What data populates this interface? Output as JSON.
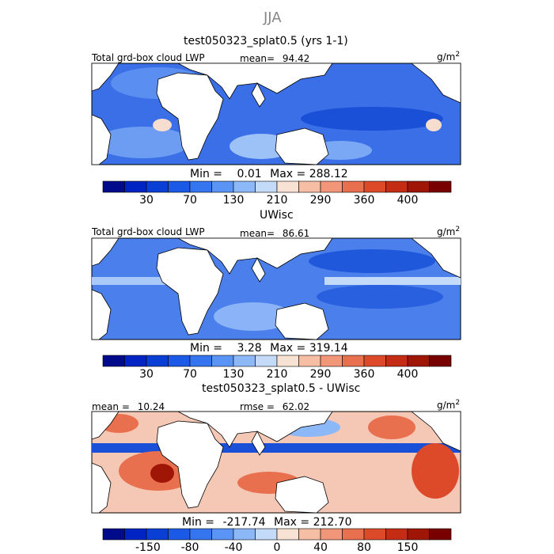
{
  "season_title": "JJA",
  "panels": [
    {
      "title": "test050323_splat0.5 (yrs 1-1)",
      "variable_label": "Total grd-box cloud LWP",
      "stat_label": "mean=",
      "stat_value": "94.42",
      "units": "g/m",
      "units_exp": "2",
      "min_label": "Min =",
      "min_value": "0.01",
      "max_label": "Max =",
      "max_value": "288.12"
    },
    {
      "title": "UWisc",
      "variable_label": "Total grd-box cloud LWP",
      "stat_label": "mean=",
      "stat_value": "86.61",
      "units": "g/m",
      "units_exp": "2",
      "min_label": "Min =",
      "min_value": "3.28",
      "max_label": "Max =",
      "max_value": "319.14"
    },
    {
      "title": "test050323_splat0.5 - UWisc",
      "mean_label": "mean =",
      "mean_value": "10.24",
      "rmse_label": "rmse =",
      "rmse_value": "62.02",
      "units": "g/m",
      "units_exp": "2",
      "min_label": "Min =",
      "min_value": "-217.74",
      "max_label": "Max =",
      "max_value": "212.70"
    }
  ],
  "colorbars": {
    "abs": {
      "colors": [
        "#000b8c",
        "#0024c4",
        "#0a3fd6",
        "#1a5ae6",
        "#3575f0",
        "#5a94f5",
        "#8cb8f8",
        "#c4daf9",
        "#f7e2d4",
        "#f7bea6",
        "#f2967a",
        "#e8704e",
        "#dc4a2a",
        "#c42c14",
        "#a01606",
        "#780000"
      ],
      "ticks": [
        "30",
        "70",
        "130",
        "210",
        "290",
        "360",
        "400"
      ]
    },
    "diff": {
      "colors": [
        "#000b8c",
        "#0024c4",
        "#0a3fd6",
        "#1a5ae6",
        "#3575f0",
        "#5a94f5",
        "#8cb8f8",
        "#c4daf9",
        "#f7e2d4",
        "#f7bea6",
        "#f2967a",
        "#e8704e",
        "#dc4a2a",
        "#c42c14",
        "#a01606",
        "#780000"
      ],
      "ticks": [
        "-150",
        "-80",
        "-40",
        "0",
        "40",
        "80",
        "150"
      ]
    }
  }
}
